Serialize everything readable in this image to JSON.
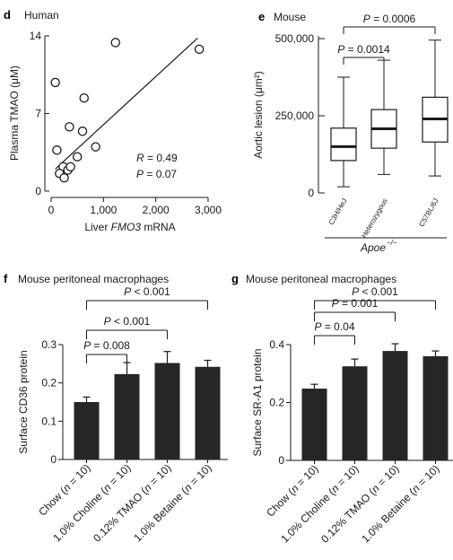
{
  "chart_data": [
    {
      "panel": "d",
      "type": "scatter",
      "title": "Human",
      "xlabel_pre": "Liver ",
      "xlabel_italic": "FMO3",
      "xlabel_post": " mRNA",
      "ylabel": "Plasma TMAO (μM)",
      "xlim": [
        0,
        3000
      ],
      "ylim": [
        0,
        14
      ],
      "xticks": [
        0,
        1000,
        2000,
        3000
      ],
      "xtick_labels": [
        "0",
        "1,000",
        "2,000",
        "3,000"
      ],
      "yticks": [
        0,
        7,
        14
      ],
      "ytick_labels": [
        "0",
        "7",
        "14"
      ],
      "points": [
        {
          "x": 80,
          "y": 9.8
        },
        {
          "x": 630,
          "y": 8.4
        },
        {
          "x": 350,
          "y": 5.8
        },
        {
          "x": 600,
          "y": 5.4
        },
        {
          "x": 850,
          "y": 4.0
        },
        {
          "x": 500,
          "y": 3.1
        },
        {
          "x": 110,
          "y": 3.7
        },
        {
          "x": 230,
          "y": 2.2
        },
        {
          "x": 320,
          "y": 1.9
        },
        {
          "x": 160,
          "y": 1.6
        },
        {
          "x": 370,
          "y": 2.2
        },
        {
          "x": 250,
          "y": 1.2
        },
        {
          "x": 1230,
          "y": 13.4
        },
        {
          "x": 2830,
          "y": 12.8
        }
      ],
      "fit_line": {
        "x": [
          80,
          2800
        ],
        "y": [
          2.0,
          13.8
        ]
      },
      "stats": [
        {
          "italic": "R",
          "text": " = 0.49"
        },
        {
          "italic": "P",
          "text": " = 0.07"
        }
      ]
    },
    {
      "panel": "e",
      "type": "box",
      "title": "Mouse",
      "ylabel": "Aortic lesion (μm²)",
      "ylim": [
        0,
        500000
      ],
      "yticks": [
        0,
        250000,
        500000
      ],
      "ytick_labels": [
        "0",
        "250,000",
        "500,000"
      ],
      "categories": [
        "C3H/HeJ",
        "Heterozygous",
        "C57BL/6J"
      ],
      "group_label": "Apoe−/−",
      "boxes": [
        {
          "min": 20000,
          "q1": 105000,
          "median": 150000,
          "q3": 210000,
          "max": 375000
        },
        {
          "min": 60000,
          "q1": 145000,
          "median": 208000,
          "q3": 270000,
          "max": 430000
        },
        {
          "min": 55000,
          "q1": 165000,
          "median": 240000,
          "q3": 310000,
          "max": 495000
        }
      ],
      "comparisons": [
        {
          "italic": "P",
          "text": " = 0.0014",
          "from": 0,
          "to": 1
        },
        {
          "italic": "P",
          "text": " = 0.0006",
          "from": 0,
          "to": 2
        }
      ]
    },
    {
      "panel": "f",
      "type": "bar",
      "title": "Mouse peritoneal macrophages",
      "ylabel": "Surface CD36 protein",
      "ylim": [
        0,
        0.3
      ],
      "yticks": [
        0,
        0.1,
        0.2,
        0.3
      ],
      "ytick_labels": [
        "0",
        "0.1",
        "0.2",
        "0.3"
      ],
      "categories": [
        "Chow (n = 10)",
        "1.0% Choline (n = 10)",
        "0.12% TMAO (n = 10)",
        "1.0% Betaine (n = 10)"
      ],
      "values": [
        0.15,
        0.223,
        0.252,
        0.242
      ],
      "errors": [
        0.013,
        0.03,
        0.03,
        0.017
      ],
      "comparisons": [
        {
          "italic": "P",
          "text": " = 0.008",
          "from": 0,
          "to": 1
        },
        {
          "italic": "P",
          "text": " < 0.001",
          "from": 0,
          "to": 2
        },
        {
          "italic": "P",
          "text": " < 0.001",
          "from": 0,
          "to": 3
        }
      ]
    },
    {
      "panel": "g",
      "type": "bar",
      "title": "Mouse peritoneal macrophages",
      "ylabel": "Surface SR-A1 protein",
      "ylim": [
        0,
        0.4
      ],
      "yticks": [
        0,
        0.2,
        0.4
      ],
      "ytick_labels": [
        "0",
        "0.2",
        "0.4"
      ],
      "categories": [
        "Chow (n = 10)",
        "1.0% Choline (n = 10)",
        "0.12% TMAO (n = 10)",
        "1.0% Betaine (n = 10)"
      ],
      "values": [
        0.248,
        0.325,
        0.378,
        0.36
      ],
      "errors": [
        0.015,
        0.025,
        0.025,
        0.018
      ],
      "comparisons": [
        {
          "italic": "P",
          "text": " = 0.04",
          "from": 0,
          "to": 1
        },
        {
          "italic": "P",
          "text": " = 0.001",
          "from": 0,
          "to": 2
        },
        {
          "italic": "P",
          "text": " < 0.001",
          "from": 0,
          "to": 3
        }
      ]
    }
  ],
  "colors": {
    "ink": "#1a1a1a",
    "bar": "#262626",
    "box": "#ffffff",
    "background": "#ffffff"
  }
}
